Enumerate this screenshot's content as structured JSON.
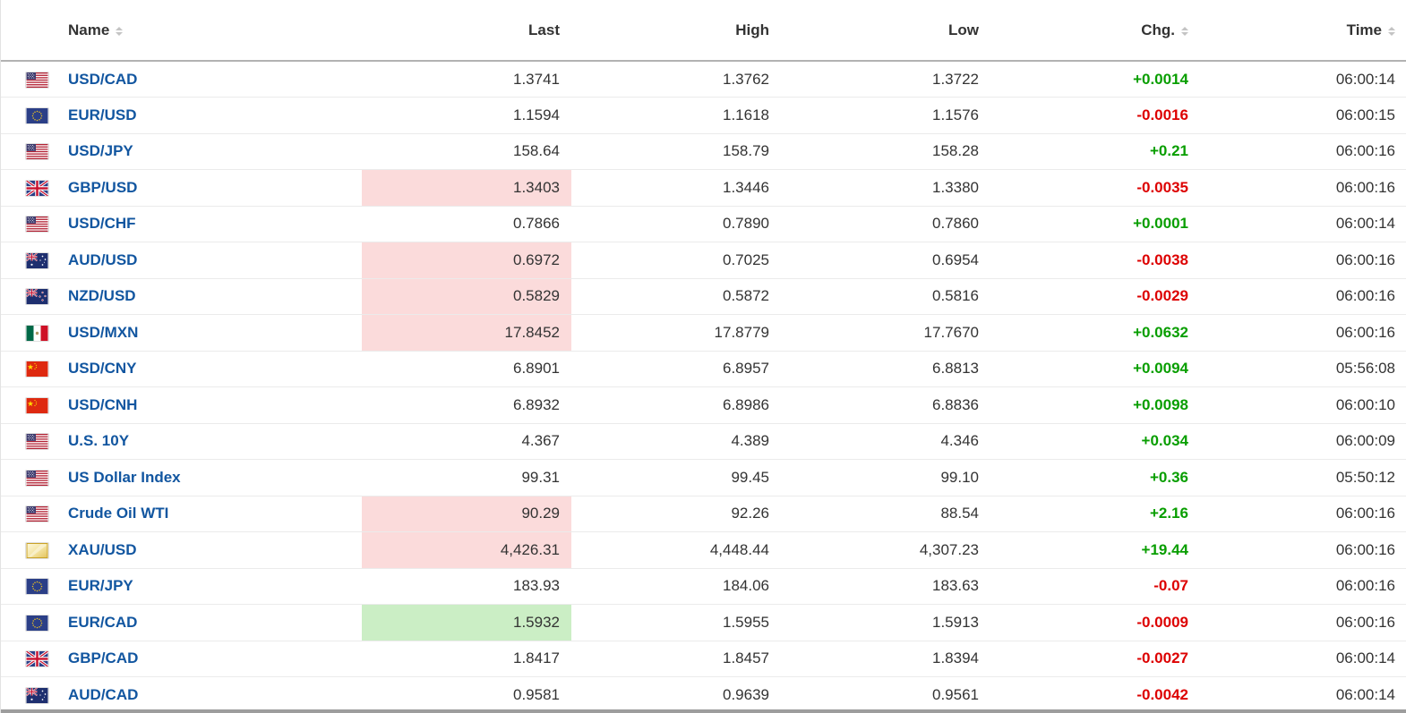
{
  "table": {
    "columns": [
      {
        "label": "Name",
        "sortable": true
      },
      {
        "label": "Last",
        "sortable": false
      },
      {
        "label": "High",
        "sortable": false
      },
      {
        "label": "Low",
        "sortable": false
      },
      {
        "label": "Chg.",
        "sortable": true
      },
      {
        "label": "Time",
        "sortable": true
      }
    ],
    "rows": [
      {
        "name": "USD/CAD",
        "flag": "us-flag-icon",
        "last": "1.3741",
        "high": "1.3762",
        "low": "1.3722",
        "chg": "+0.0014",
        "chg_dir": "up",
        "time": "06:00:14",
        "last_flash": "none"
      },
      {
        "name": "EUR/USD",
        "flag": "eu-flag-icon",
        "last": "1.1594",
        "high": "1.1618",
        "low": "1.1576",
        "chg": "-0.0016",
        "chg_dir": "down",
        "time": "06:00:15",
        "last_flash": "none"
      },
      {
        "name": "USD/JPY",
        "flag": "us-flag-icon",
        "last": "158.64",
        "high": "158.79",
        "low": "158.28",
        "chg": "+0.21",
        "chg_dir": "up",
        "time": "06:00:16",
        "last_flash": "none"
      },
      {
        "name": "GBP/USD",
        "flag": "uk-flag-icon",
        "last": "1.3403",
        "high": "1.3446",
        "low": "1.3380",
        "chg": "-0.0035",
        "chg_dir": "down",
        "time": "06:00:16",
        "last_flash": "red"
      },
      {
        "name": "USD/CHF",
        "flag": "us-flag-icon",
        "last": "0.7866",
        "high": "0.7890",
        "low": "0.7860",
        "chg": "+0.0001",
        "chg_dir": "up",
        "time": "06:00:14",
        "last_flash": "none"
      },
      {
        "name": "AUD/USD",
        "flag": "au-flag-icon",
        "last": "0.6972",
        "high": "0.7025",
        "low": "0.6954",
        "chg": "-0.0038",
        "chg_dir": "down",
        "time": "06:00:16",
        "last_flash": "red"
      },
      {
        "name": "NZD/USD",
        "flag": "nz-flag-icon",
        "last": "0.5829",
        "high": "0.5872",
        "low": "0.5816",
        "chg": "-0.0029",
        "chg_dir": "down",
        "time": "06:00:16",
        "last_flash": "red"
      },
      {
        "name": "USD/MXN",
        "flag": "mx-flag-icon",
        "last": "17.8452",
        "high": "17.8779",
        "low": "17.7670",
        "chg": "+0.0632",
        "chg_dir": "up",
        "time": "06:00:16",
        "last_flash": "red"
      },
      {
        "name": "USD/CNY",
        "flag": "cn-flag-icon",
        "last": "6.8901",
        "high": "6.8957",
        "low": "6.8813",
        "chg": "+0.0094",
        "chg_dir": "up",
        "time": "05:56:08",
        "last_flash": "none"
      },
      {
        "name": "USD/CNH",
        "flag": "cn-flag-icon",
        "last": "6.8932",
        "high": "6.8986",
        "low": "6.8836",
        "chg": "+0.0098",
        "chg_dir": "up",
        "time": "06:00:10",
        "last_flash": "none"
      },
      {
        "name": "U.S. 10Y",
        "flag": "us-flag-icon",
        "last": "4.367",
        "high": "4.389",
        "low": "4.346",
        "chg": "+0.034",
        "chg_dir": "up",
        "time": "06:00:09",
        "last_flash": "none"
      },
      {
        "name": "US Dollar Index",
        "flag": "us-flag-icon",
        "last": "99.31",
        "high": "99.45",
        "low": "99.10",
        "chg": "+0.36",
        "chg_dir": "up",
        "time": "05:50:12",
        "last_flash": "none"
      },
      {
        "name": "Crude Oil WTI",
        "flag": "us-flag-icon",
        "last": "90.29",
        "high": "92.26",
        "low": "88.54",
        "chg": "+2.16",
        "chg_dir": "up",
        "time": "06:00:16",
        "last_flash": "red"
      },
      {
        "name": "XAU/USD",
        "flag": "gold-bar-icon",
        "last": "4,426.31",
        "high": "4,448.44",
        "low": "4,307.23",
        "chg": "+19.44",
        "chg_dir": "up",
        "time": "06:00:16",
        "last_flash": "red"
      },
      {
        "name": "EUR/JPY",
        "flag": "eu-flag-icon",
        "last": "183.93",
        "high": "184.06",
        "low": "183.63",
        "chg": "-0.07",
        "chg_dir": "down",
        "time": "06:00:16",
        "last_flash": "none"
      },
      {
        "name": "EUR/CAD",
        "flag": "eu-flag-icon",
        "last": "1.5932",
        "high": "1.5955",
        "low": "1.5913",
        "chg": "-0.0009",
        "chg_dir": "down",
        "time": "06:00:16",
        "last_flash": "green"
      },
      {
        "name": "GBP/CAD",
        "flag": "uk-flag-icon",
        "last": "1.8417",
        "high": "1.8457",
        "low": "1.8394",
        "chg": "-0.0027",
        "chg_dir": "down",
        "time": "06:00:14",
        "last_flash": "none"
      },
      {
        "name": "AUD/CAD",
        "flag": "au-flag-icon",
        "last": "0.9581",
        "high": "0.9639",
        "low": "0.9561",
        "chg": "-0.0042",
        "chg_dir": "down",
        "time": "06:00:14",
        "last_flash": "none"
      }
    ],
    "colors": {
      "up_text": "#089e00",
      "down_text": "#dd0000",
      "flash_down_bg": "#fbdbdb",
      "flash_up_bg": "#cbeec5",
      "pair_link": "#1256a0",
      "header_text": "#333333"
    }
  }
}
